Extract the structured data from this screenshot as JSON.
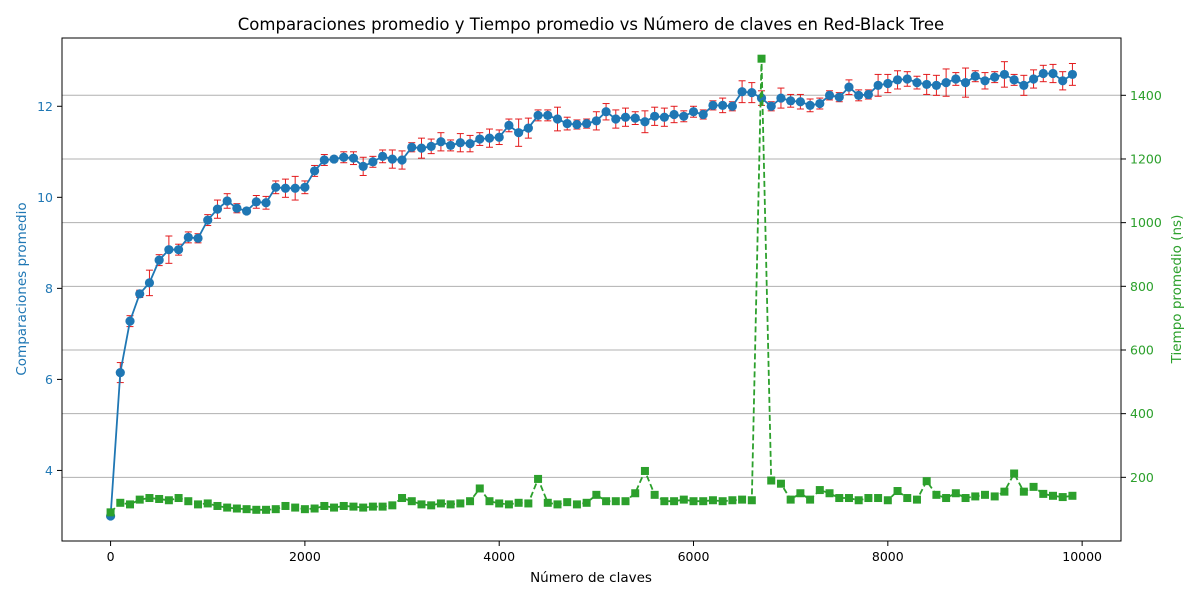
{
  "chart_data": {
    "type": "line",
    "title": "Comparaciones promedio y Tiempo promedio vs Número de claves en Red-Black Tree",
    "xlabel": "Número de claves",
    "ylabel_left": "Comparaciones promedio",
    "ylabel_right": "Tiempo promedio (ns)",
    "xlim": [
      -500,
      10400
    ],
    "ylim_left": [
      2.45,
      13.5
    ],
    "ylim_right": [
      0,
      1580
    ],
    "x_ticks": [
      0,
      2000,
      4000,
      6000,
      8000,
      10000
    ],
    "y_left_ticks": [
      4,
      6,
      8,
      10,
      12
    ],
    "y_right_ticks": [
      200,
      400,
      600,
      800,
      1000,
      1200,
      1400
    ],
    "grid": "horizontal lines at right-axis ticks",
    "colors": {
      "comparisons": "#1f77b4",
      "error_bars": "#e31a1c",
      "time": "#2ca02c",
      "grid": "#b0b0b0",
      "axes": "#000000"
    },
    "x": [
      0,
      100,
      200,
      300,
      400,
      500,
      600,
      700,
      800,
      900,
      1000,
      1100,
      1200,
      1300,
      1400,
      1500,
      1600,
      1700,
      1800,
      1900,
      2000,
      2100,
      2200,
      2300,
      2400,
      2500,
      2600,
      2700,
      2800,
      2900,
      3000,
      3100,
      3200,
      3300,
      3400,
      3500,
      3600,
      3700,
      3800,
      3900,
      4000,
      4100,
      4200,
      4300,
      4400,
      4500,
      4600,
      4700,
      4800,
      4900,
      5000,
      5100,
      5200,
      5300,
      5400,
      5500,
      5600,
      5700,
      5800,
      5900,
      6000,
      6100,
      6200,
      6300,
      6400,
      6500,
      6600,
      6700,
      6800,
      6900,
      7000,
      7100,
      7200,
      7300,
      7400,
      7500,
      7600,
      7700,
      7800,
      7900,
      8000,
      8100,
      8200,
      8300,
      8400,
      8500,
      8600,
      8700,
      8800,
      8900,
      9000,
      9100,
      9200,
      9300,
      9400,
      9500,
      9600,
      9700,
      9800,
      9900
    ],
    "series": [
      {
        "name": "Comparaciones promedio",
        "axis": "left",
        "style": "solid line with circle markers and error bars",
        "values": [
          3.0,
          6.15,
          7.28,
          7.88,
          8.12,
          8.62,
          8.85,
          8.85,
          9.12,
          9.1,
          9.5,
          9.74,
          9.92,
          9.76,
          9.7,
          9.9,
          9.88,
          10.22,
          10.2,
          10.2,
          10.22,
          10.58,
          10.82,
          10.84,
          10.88,
          10.86,
          10.68,
          10.78,
          10.9,
          10.84,
          10.82,
          11.1,
          11.08,
          11.12,
          11.22,
          11.14,
          11.2,
          11.18,
          11.28,
          11.3,
          11.32,
          11.58,
          11.42,
          11.52,
          11.8,
          11.8,
          11.72,
          11.62,
          11.6,
          11.62,
          11.68,
          11.88,
          11.72,
          11.76,
          11.74,
          11.66,
          11.78,
          11.76,
          11.82,
          11.78,
          11.88,
          11.82,
          12.02,
          12.02,
          12.0,
          12.32,
          12.3,
          12.18,
          12.0,
          12.18,
          12.12,
          12.1,
          12.02,
          12.06,
          12.24,
          12.2,
          12.42,
          12.24,
          12.26,
          12.46,
          12.5,
          12.58,
          12.6,
          12.52,
          12.48,
          12.46,
          12.52,
          12.6,
          12.52,
          12.66,
          12.56,
          12.64,
          12.7,
          12.58,
          12.46,
          12.6,
          12.72,
          12.72,
          12.56,
          12.7
        ],
        "errors": [
          0.05,
          0.22,
          0.12,
          0.08,
          0.28,
          0.12,
          0.3,
          0.12,
          0.12,
          0.1,
          0.12,
          0.2,
          0.16,
          0.1,
          0.06,
          0.14,
          0.14,
          0.14,
          0.2,
          0.26,
          0.14,
          0.12,
          0.12,
          0.06,
          0.12,
          0.14,
          0.2,
          0.12,
          0.14,
          0.2,
          0.2,
          0.1,
          0.22,
          0.16,
          0.2,
          0.12,
          0.2,
          0.18,
          0.14,
          0.2,
          0.16,
          0.14,
          0.3,
          0.22,
          0.12,
          0.12,
          0.26,
          0.14,
          0.1,
          0.1,
          0.2,
          0.18,
          0.2,
          0.2,
          0.14,
          0.24,
          0.2,
          0.2,
          0.18,
          0.12,
          0.12,
          0.1,
          0.1,
          0.16,
          0.1,
          0.24,
          0.22,
          0.16,
          0.1,
          0.22,
          0.14,
          0.16,
          0.14,
          0.12,
          0.1,
          0.1,
          0.16,
          0.12,
          0.1,
          0.24,
          0.2,
          0.2,
          0.16,
          0.14,
          0.22,
          0.22,
          0.3,
          0.14,
          0.32,
          0.12,
          0.18,
          0.12,
          0.28,
          0.12,
          0.22,
          0.2,
          0.18,
          0.2,
          0.2,
          0.24
        ]
      },
      {
        "name": "Tiempo promedio (ns)",
        "axis": "right",
        "style": "dashed line with square markers",
        "values": [
          90,
          120,
          115,
          130,
          135,
          132,
          128,
          135,
          125,
          115,
          118,
          110,
          105,
          102,
          100,
          98,
          98,
          100,
          110,
          105,
          100,
          102,
          110,
          105,
          110,
          108,
          105,
          108,
          108,
          112,
          135,
          125,
          115,
          112,
          118,
          115,
          118,
          125,
          165,
          125,
          118,
          115,
          120,
          118,
          195,
          120,
          115,
          122,
          115,
          120,
          145,
          125,
          125,
          125,
          150,
          220,
          145,
          125,
          125,
          130,
          125,
          125,
          128,
          125,
          128,
          130,
          128,
          1515,
          190,
          180,
          130,
          150,
          130,
          160,
          150,
          135,
          135,
          128,
          135,
          135,
          128,
          157,
          135,
          130,
          188,
          145,
          135,
          150,
          135,
          140,
          145,
          140,
          155,
          212,
          155,
          170,
          148,
          142,
          138,
          142
        ]
      }
    ]
  }
}
